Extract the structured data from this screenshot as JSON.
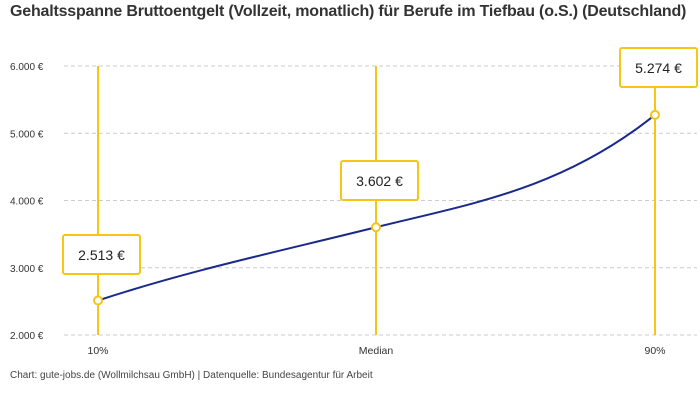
{
  "chart_data": {
    "type": "line",
    "title": "Gehaltsspanne Bruttoentgelt (Vollzeit, monatlich) für Berufe im Tiefbau (o.S.) (Deutschland)",
    "categories": [
      "10%",
      "Median",
      "90%"
    ],
    "values": [
      2513,
      3602,
      5274
    ],
    "data_labels": [
      "2.513 €",
      "3.602 €",
      "5.274 €"
    ],
    "ylim": [
      2000,
      6000
    ],
    "yticks": [
      {
        "value": 2000,
        "label": "2.000 €"
      },
      {
        "value": 3000,
        "label": "3.000 €"
      },
      {
        "value": 4000,
        "label": "4.000 €"
      },
      {
        "value": 5000,
        "label": "5.000 €"
      },
      {
        "value": 6000,
        "label": "6.000 €"
      }
    ],
    "grid": true,
    "xlabel": "",
    "ylabel": "",
    "colors": {
      "line": "#1a2a8c",
      "accent": "#f5c518",
      "grid": "#cccccc"
    }
  },
  "footer": "Chart: gute-jobs.de (Wollmilchsau GmbH) | Datenquelle: Bundesagentur für Arbeit"
}
